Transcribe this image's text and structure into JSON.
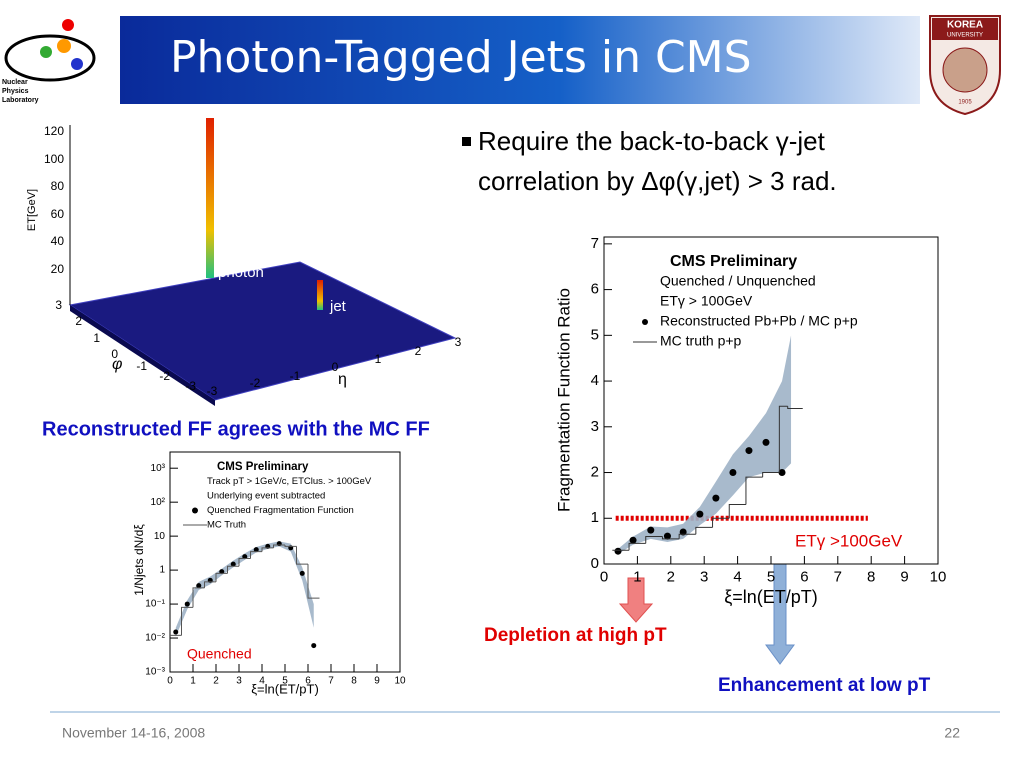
{
  "header": {
    "title": "Photon-Tagged Jets in CMS",
    "logo_left": [
      "Nuclear",
      "Physics",
      "Laboratory"
    ],
    "logo_right": [
      "KOREA",
      "UNIVERSITY",
      "1905"
    ]
  },
  "bullet": [
    "Require the back-to-back γ-jet",
    "correlation by Δφ(γ,jet) > 3 rad."
  ],
  "caption": "Reconstructed FF agrees with the MC FF",
  "depletion": "Depletion at high pT",
  "enhancement": "Enhancement at low pT",
  "footer": {
    "date": "November 14-16, 2008",
    "page": "22"
  },
  "lego_plot": {
    "zlabel": "ET[GeV]",
    "zticks": [
      20,
      40,
      60,
      80,
      100,
      120
    ],
    "philabel": "φ",
    "phiticks": [
      3,
      2,
      1,
      0,
      -1,
      -2,
      -3
    ],
    "etalabel": "η",
    "etaticks": [
      -3,
      -2,
      -1,
      0,
      1,
      2,
      3
    ],
    "photon": "photon",
    "jet": "jet"
  },
  "chart_data": [
    {
      "type": "scatter",
      "xlabel": "ξ=ln(ET/pT)",
      "ylabel": "Fragmentation Function Ratio",
      "legend_texts": [
        "CMS Preliminary",
        "Quenched / Unquenched",
        "ETγ > 100GeV"
      ],
      "annotation": "ETγ >100GeV",
      "xlim": [
        0,
        10
      ],
      "ylim": [
        0,
        7.15
      ],
      "xticks": [
        0,
        1,
        2,
        3,
        4,
        5,
        6,
        7,
        8,
        9,
        10
      ],
      "yticks": [
        0,
        1,
        2,
        3,
        4,
        5,
        6,
        7
      ],
      "reference_line": {
        "value": 1,
        "xlim": [
          0.35,
          7.9
        ],
        "color": "#e00000"
      },
      "series": [
        {
          "type": "band",
          "color": "#9fb2c6",
          "x": [
            0.42,
            0.87,
            1.4,
            1.9,
            2.37,
            2.87,
            3.35,
            3.86,
            4.34,
            4.85,
            5.33,
            5.6
          ],
          "upper": [
            0.33,
            0.6,
            0.82,
            0.8,
            0.88,
            1.25,
            1.8,
            2.4,
            2.8,
            3.3,
            4.0,
            5.0
          ],
          "lower": [
            0.22,
            0.42,
            0.55,
            0.48,
            0.55,
            0.85,
            1.1,
            1.5,
            1.9,
            2.0,
            2.0,
            2.2
          ]
        },
        {
          "type": "points",
          "name": "Reconstructed Pb+Pb / MC p+p",
          "color": "#000000",
          "x": [
            0.42,
            0.87,
            1.4,
            1.9,
            2.37,
            2.87,
            3.35,
            3.86,
            4.34,
            4.85,
            5.33
          ],
          "values": [
            0.28,
            0.52,
            0.74,
            0.61,
            0.7,
            1.09,
            1.44,
            2.0,
            2.48,
            2.66,
            2.0
          ]
        },
        {
          "type": "step",
          "name": "MC truth p+p",
          "color": "#333333",
          "bins": [
            0.25,
            0.75,
            1.25,
            1.75,
            2.25,
            2.75,
            3.25,
            3.75,
            4.25,
            4.75,
            5.25,
            5.5,
            5.95
          ],
          "values": [
            0.3,
            0.45,
            0.6,
            0.55,
            0.65,
            0.8,
            1.0,
            1.3,
            1.9,
            2.0,
            3.45,
            3.4
          ]
        }
      ]
    },
    {
      "type": "scatter",
      "xlabel": "ξ=ln(ET/pT)",
      "ylabel": "1/Njets dN/dξ",
      "log_y": true,
      "legend_texts": [
        "CMS Preliminary",
        "Track pT > 1GeV/c, ETClus. > 100GeV",
        "Underlying event subtracted"
      ],
      "annotation": "Quenched",
      "xlim": [
        0,
        10
      ],
      "ylim": [
        0.001,
        3000
      ],
      "xticks": [
        0,
        1,
        2,
        3,
        4,
        5,
        6,
        7,
        8,
        9,
        10
      ],
      "yticks": [
        {
          "value": 0.001,
          "label": "10⁻³"
        },
        {
          "value": 0.01,
          "label": "10⁻²"
        },
        {
          "value": 0.1,
          "label": "10⁻¹"
        },
        1,
        10,
        {
          "value": 100,
          "label": "10²"
        },
        {
          "value": 1000,
          "label": "10³"
        }
      ],
      "series": [
        {
          "type": "band",
          "color": "#9fb2c6",
          "x": [
            0.25,
            0.75,
            1.25,
            1.75,
            2.25,
            2.75,
            3.25,
            3.75,
            4.25,
            4.75,
            5.25,
            5.75,
            6.25
          ],
          "upper": [
            0.02,
            0.13,
            0.45,
            0.65,
            1.1,
            1.9,
            3.1,
            4.8,
            6,
            7,
            6,
            1.2,
            0.1
          ],
          "lower": [
            0.011,
            0.07,
            0.26,
            0.38,
            0.7,
            1.2,
            2.0,
            3.3,
            4.2,
            5,
            3.5,
            0.5,
            0.02
          ]
        },
        {
          "type": "points",
          "name": "Quenched Fragmentation Function",
          "color": "#000000",
          "x": [
            0.25,
            0.75,
            1.25,
            1.75,
            2.25,
            2.75,
            3.25,
            3.75,
            4.25,
            4.75,
            5.25,
            5.75,
            6.25
          ],
          "values": [
            0.015,
            0.1,
            0.35,
            0.5,
            0.9,
            1.5,
            2.5,
            4,
            5,
            6,
            4.5,
            0.8,
            0.006
          ]
        },
        {
          "type": "step",
          "name": "MC Truth",
          "color": "#555555",
          "bins": [
            0,
            0.5,
            1,
            1.5,
            2,
            2.5,
            3,
            3.5,
            4,
            4.5,
            5,
            5.5,
            6,
            6.5
          ],
          "values": [
            0.012,
            0.08,
            0.3,
            0.45,
            0.8,
            1.3,
            2.2,
            3.5,
            4.5,
            5.5,
            5,
            1.5,
            0.15
          ]
        }
      ]
    }
  ]
}
